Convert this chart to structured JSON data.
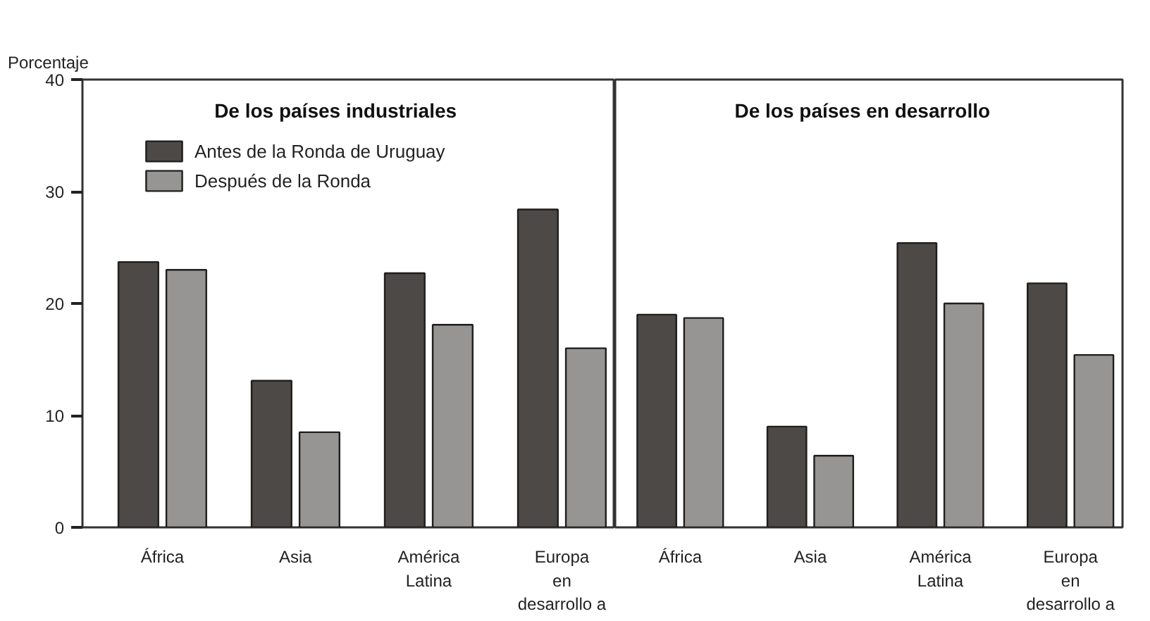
{
  "chart_data": [
    {
      "type": "bar",
      "title": "De los países industriales",
      "ylabel": "Porcentaje",
      "categories": [
        "África",
        "Asia",
        "América\nLatina",
        "Europa\nen\ndesarrollo a"
      ],
      "series": [
        {
          "name": "Antes de la Ronda de Uruguay",
          "color": "#4d4946",
          "values": [
            23.7,
            13.1,
            22.7,
            28.4
          ]
        },
        {
          "name": "Después de la Ronda",
          "color": "#979593",
          "values": [
            23.0,
            8.5,
            18.1,
            16.0
          ]
        }
      ],
      "ylim": [
        0,
        40
      ],
      "yticks": [
        0,
        10,
        20,
        30,
        40
      ],
      "grid": false,
      "legend": "top left"
    },
    {
      "type": "bar",
      "title": "De los países en desarrollo",
      "categories": [
        "África",
        "Asia",
        "América\nLatina",
        "Europa\nen\ndesarrollo a"
      ],
      "series": [
        {
          "color": "#4d4946",
          "values": [
            19.0,
            9.0,
            25.4,
            21.8
          ]
        },
        {
          "color": "#979593",
          "values": [
            18.7,
            6.4,
            20.0,
            15.4
          ]
        }
      ],
      "ylim": [
        0,
        40
      ],
      "yticks": [
        0,
        10,
        20,
        30,
        40
      ],
      "grid": false,
      "tick_labels": "x"
    }
  ]
}
